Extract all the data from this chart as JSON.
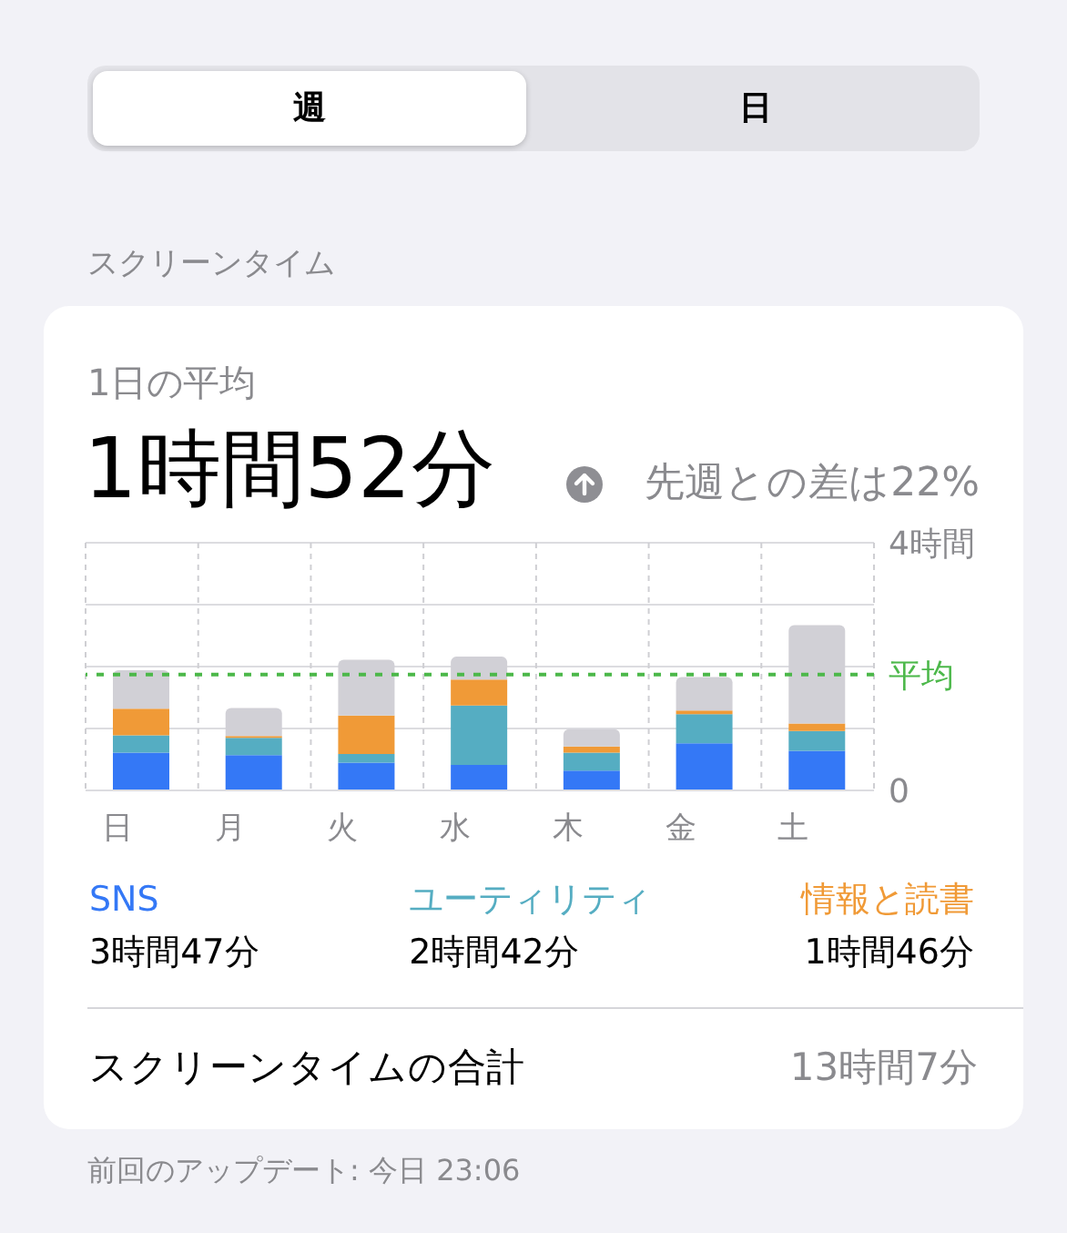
{
  "chart_data": {
    "type": "bar",
    "stacked": true,
    "title": "スクリーンタイム",
    "subtitle": "1日の平均",
    "categories": [
      "日",
      "月",
      "火",
      "水",
      "木",
      "金",
      "土"
    ],
    "series": [
      {
        "name": "SNS",
        "color": "#3478f6",
        "values": [
          0.61,
          0.57,
          0.45,
          0.41,
          0.32,
          0.76,
          0.64
        ]
      },
      {
        "name": "ユーティリティ",
        "color": "#55adc2",
        "values": [
          0.28,
          0.28,
          0.14,
          0.96,
          0.29,
          0.47,
          0.32
        ]
      },
      {
        "name": "情報と読書",
        "color": "#f09a37",
        "values": [
          0.43,
          0.03,
          0.62,
          0.42,
          0.1,
          0.06,
          0.12
        ]
      },
      {
        "color": "#d1d0d6",
        "values": [
          0.62,
          0.45,
          0.9,
          0.37,
          0.28,
          0.54,
          1.59
        ]
      }
    ],
    "ylim": [
      0,
      4
    ],
    "yticks": [
      0,
      {
        "value": 1,
        "label": null
      },
      {
        "value": 2,
        "label": null
      },
      {
        "value": 3,
        "label": null
      },
      {
        "value": 4,
        "label": "4時間"
      }
    ],
    "grid": true,
    "legend": "bottom",
    "ref_lines": [
      {
        "axis": "y",
        "value": 1.87,
        "label": "平均",
        "color": "#4cb84a",
        "line_style": "dotted"
      }
    ],
    "annotations": [
      "週",
      "日",
      "1時間52分",
      "先週との差は22%",
      "3時間47分",
      "2時間42分",
      "1時間46分",
      "スクリーンタイムの合計",
      "13時間7分",
      "前回のアップデート: 今日 23:06"
    ]
  }
}
